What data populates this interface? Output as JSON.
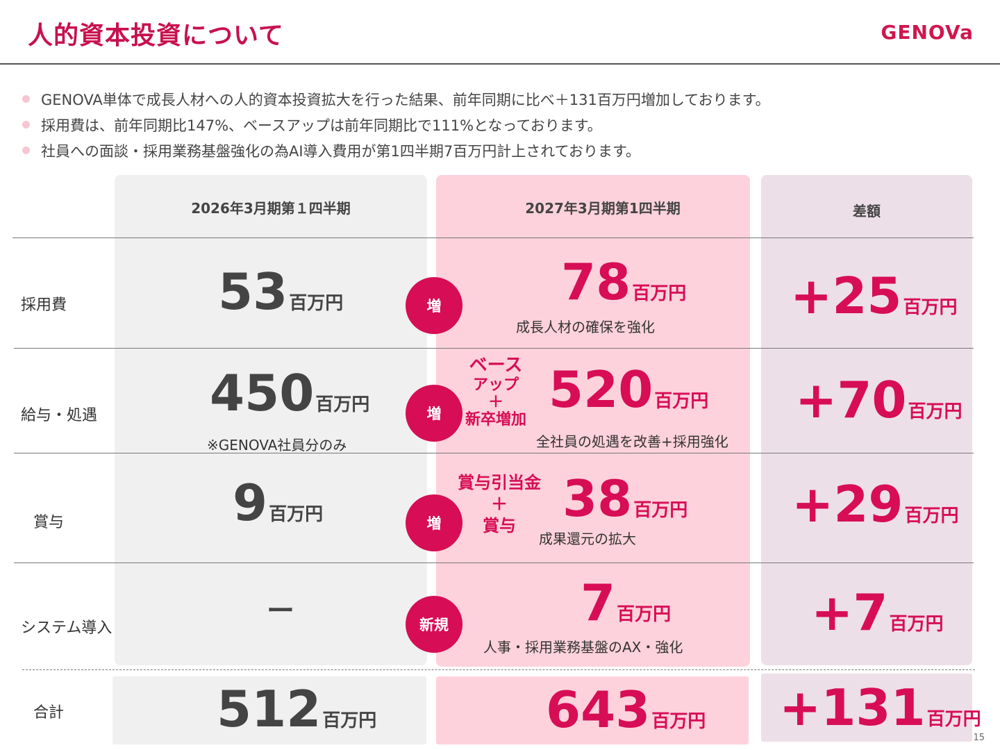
{
  "header": {
    "title": "人的資本投資について",
    "logo": "GENOVa"
  },
  "bullets": [
    "GENOVA単体で成長人材への人的資本投資拡大を行った結果、前年同期に比べ＋131百万円増加しております。",
    "採用費は、前年同期比147%、ベースアップは前年同期比で111%となっております。",
    "社員への面談・採用業務基盤強化の為AI導入費用が第1四半期7百万円計上されております。"
  ],
  "columns": {
    "prev": "2026年3月期第１四半期",
    "curr": "2027年3月期第1四半期",
    "diff": "差額"
  },
  "unit": "百万円",
  "rows": [
    {
      "label": "採用費",
      "prev": "53",
      "curr": "78",
      "diff": "+25",
      "circle": "増",
      "curr_note": "成長人材の確保を強化"
    },
    {
      "label": "給与・処遇",
      "prev": "450",
      "prev_note": "※GENOVA社員分のみ",
      "curr": "520",
      "diff": "+70",
      "circle": "増",
      "badge": [
        "ベース",
        "アップ",
        "＋",
        "新卒増加"
      ],
      "curr_note": "全社員の処遇を改善+採用強化"
    },
    {
      "label": "賞与",
      "prev": "9",
      "curr": "38",
      "diff": "+29",
      "circle": "増",
      "badge": [
        "賞与引当金",
        "＋",
        "賞与"
      ],
      "curr_note": "成果還元の拡大"
    },
    {
      "label": "システム導入",
      "prev": "ー",
      "curr": "7",
      "diff": "+7",
      "circle": "新規",
      "curr_note": "人事・採用業務基盤のAX・強化"
    }
  ],
  "total": {
    "label": "合計",
    "prev": "512",
    "curr": "643",
    "diff": "+131"
  },
  "page_number": "15",
  "colors": {
    "accent": "#d70d55",
    "title": "#c8104e",
    "gray_col": "#f0f0f0",
    "pink_col": "#fdd2dc",
    "purple_col": "#eddfe8"
  }
}
